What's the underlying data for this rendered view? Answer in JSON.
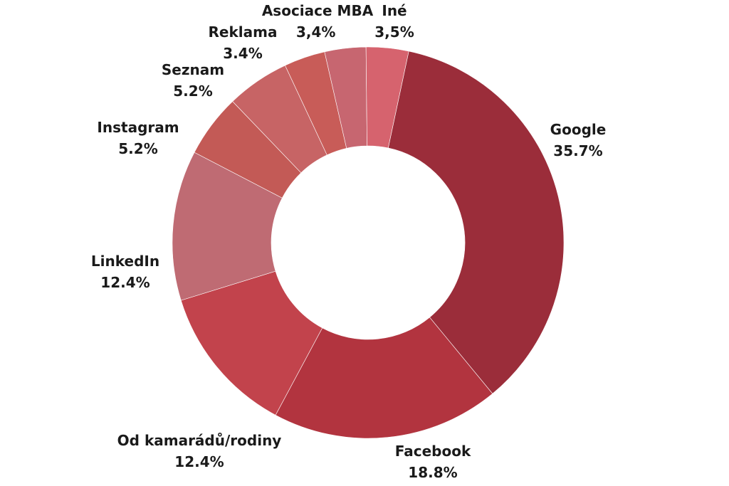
{
  "chart_data": {
    "type": "pie",
    "donut": true,
    "categories": [
      "Google",
      "Facebook",
      "Od kamarádů/rodiny",
      "LinkedIn",
      "Instagram",
      "Seznam",
      "Reklama",
      "Asociace MBA",
      "Iné"
    ],
    "values": [
      35.7,
      18.8,
      12.4,
      12.4,
      5.2,
      5.2,
      3.4,
      3.4,
      3.5
    ],
    "value_labels": [
      "35.7%",
      "18.8%",
      "12.4%",
      "12.4%",
      "5.2%",
      "5.2%",
      "3.4%",
      "3,4%",
      "3,5%"
    ],
    "colors": [
      "#9b2d3a",
      "#b2343f",
      "#c2434c",
      "#bf6b73",
      "#c35a56",
      "#c76465",
      "#c85c58",
      "#c76670",
      "#d6636e"
    ],
    "title": "",
    "legend": "none"
  }
}
